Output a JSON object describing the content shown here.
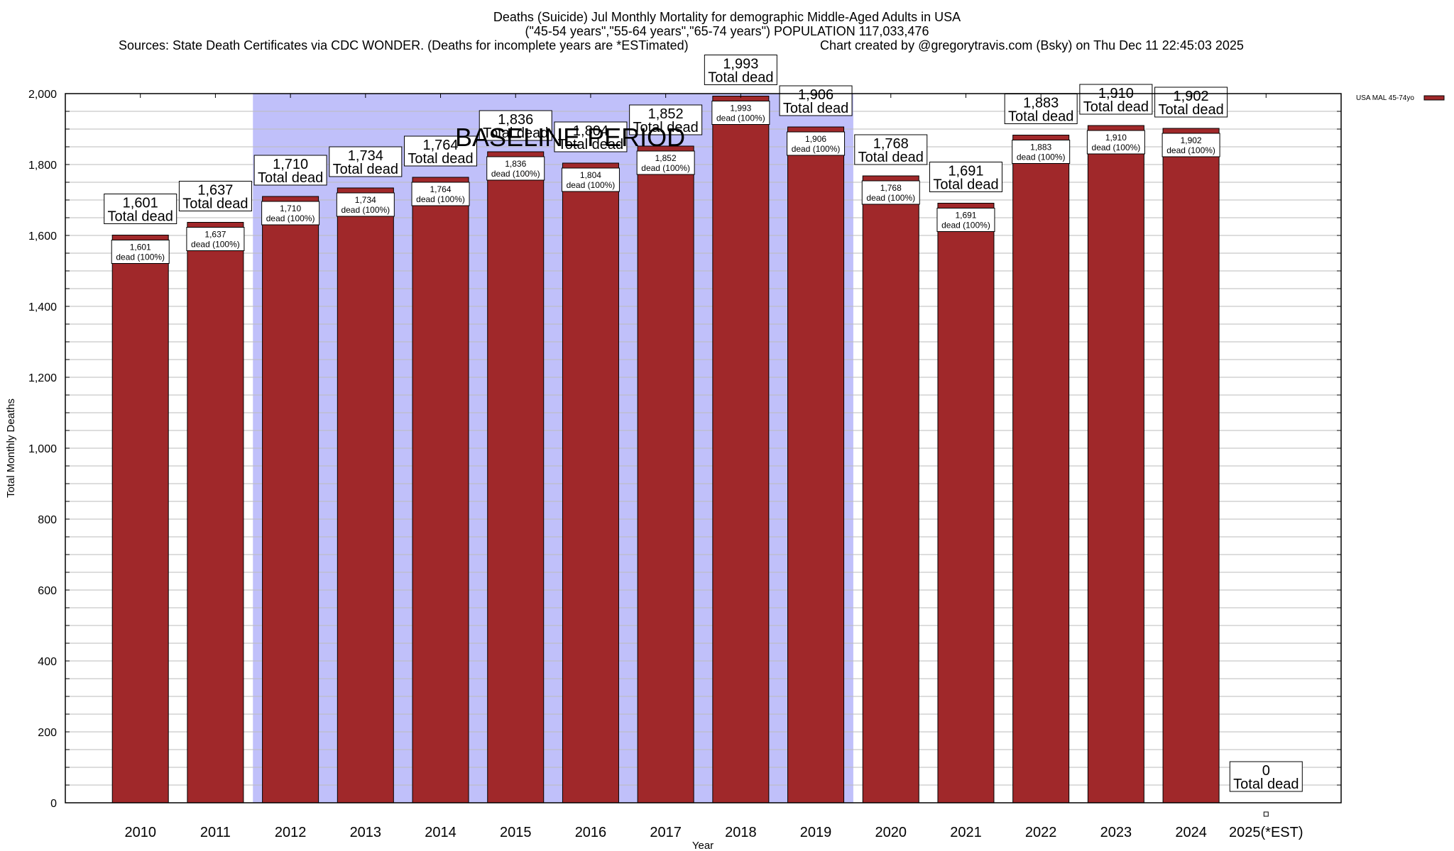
{
  "header": {
    "title_line1": "Deaths (Suicide) Jul Monthly Mortality for demographic Middle-Aged Adults in USA",
    "title_line2": "(\"45-54 years\",\"55-64 years\",\"65-74 years\") POPULATION 117,033,476",
    "sources": "Sources: State Death Certificates via CDC WONDER. (Deaths for incomplete years are *ESTimated)",
    "credit": "Chart created by @gregorytravis.com (Bsky) on Thu Dec 11 22:45:03 2025"
  },
  "chart_data": {
    "type": "bar",
    "title": "Deaths (Suicide) Jul Monthly Mortality for demographic Middle-Aged Adults in USA",
    "xlabel": "Year",
    "ylabel": "Total Monthly Deaths",
    "ylim": [
      0,
      2000
    ],
    "yticks": [
      0,
      200,
      400,
      600,
      800,
      1000,
      1200,
      1400,
      1600,
      1800,
      2000
    ],
    "ytick_labels": [
      "0",
      "200",
      "400",
      "600",
      "800",
      "1,000",
      "1,200",
      "1,400",
      "1,600",
      "1,800",
      "2,000"
    ],
    "minor_grid_step": 50,
    "grid": true,
    "categories": [
      "2010",
      "2011",
      "2012",
      "2013",
      "2014",
      "2015",
      "2016",
      "2017",
      "2018",
      "2019",
      "2020",
      "2021",
      "2022",
      "2023",
      "2024",
      "2025(*EST)"
    ],
    "series": [
      {
        "name": "USA MAL 45-74yo",
        "color": "#a0282a",
        "values": [
          1601,
          1637,
          1710,
          1734,
          1764,
          1836,
          1804,
          1852,
          1993,
          1906,
          1768,
          1691,
          1883,
          1910,
          1902,
          0
        ]
      }
    ],
    "value_labels": [
      "1,601",
      "1,637",
      "1,710",
      "1,734",
      "1,764",
      "1,836",
      "1,804",
      "1,852",
      "1,993",
      "1,906",
      "1,768",
      "1,691",
      "1,883",
      "1,910",
      "1,902",
      "0"
    ],
    "total_label_suffix": "Total dead",
    "inner_label_suffix": "dead (100%)",
    "baseline_period": {
      "label": "BASELINE PERIOD",
      "from": "2012",
      "to": "2019",
      "color": "#c0c0fa"
    },
    "legend": {
      "entries": [
        "USA MAL 45-74yo"
      ],
      "position": "top-right-outside"
    }
  }
}
